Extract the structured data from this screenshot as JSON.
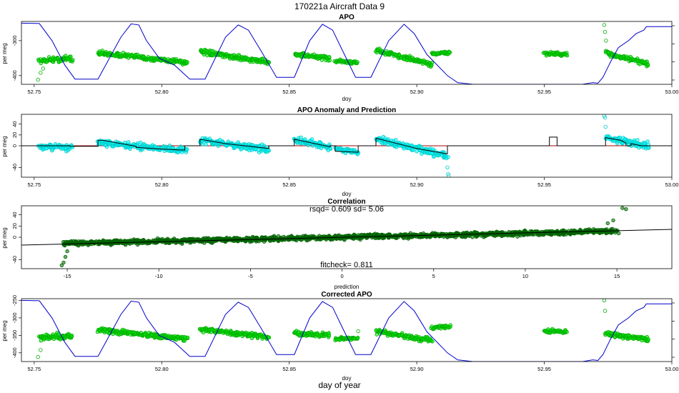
{
  "figure": {
    "title": "170221a   Aircraft Data 9",
    "bottom_label": "day of year"
  },
  "colors": {
    "aircraft_line": "#0000cc",
    "green_points": "#00ee00",
    "green_points_edge": "#00aa00",
    "cyan_points": "#00ffff",
    "cyan_points_edge": "#00c8c8",
    "dark_green_points": "#006400",
    "prediction_line": "#000000",
    "anomaly_baseline": "#aa0000"
  },
  "chart_data": [
    {
      "id": "apo",
      "type": "scatter",
      "title": "APO",
      "xlabel": "doy",
      "ylabel": "per meg",
      "xlim": [
        52.745,
        53.0
      ],
      "ylim": [
        -425,
        -245
      ],
      "x_ticks": [
        "52.75",
        "52.80",
        "52.85",
        "52.90",
        "52.95",
        "53.00"
      ],
      "y_ticks": [
        "-400",
        "-300"
      ],
      "secondary_axis": true,
      "series": [
        {
          "kind": "points",
          "clusters": [
            {
              "x": [
                52.752,
                52.765
              ],
              "y_start": -357,
              "y_end": -350,
              "spread": 12
            },
            {
              "x": [
                52.775,
                52.81
              ],
              "y_start": -335,
              "y_end": -362,
              "spread": 10
            },
            {
              "x": [
                52.815,
                52.842
              ],
              "y_start": -332,
              "y_end": -362,
              "spread": 10
            },
            {
              "x": [
                52.852,
                52.866
              ],
              "y_start": -338,
              "y_end": -352,
              "spread": 10
            },
            {
              "x": [
                52.868,
                52.877
              ],
              "y_start": -358,
              "y_end": -363,
              "spread": 6
            },
            {
              "x": [
                52.884,
                52.906
              ],
              "y_start": -328,
              "y_end": -368,
              "spread": 10
            },
            {
              "x": [
                52.906,
                52.913
              ],
              "y_start": -338,
              "y_end": -334,
              "spread": 6
            },
            {
              "x": [
                52.95,
                52.959
              ],
              "y_start": -336,
              "y_end": -340,
              "spread": 8
            },
            {
              "x": [
                52.974,
                52.991
              ],
              "y_start": -335,
              "y_end": -368,
              "spread": 10
            }
          ],
          "outliers": [
            [
              52.7525,
              -392
            ],
            [
              52.7515,
              -412
            ],
            [
              52.7535,
              -380
            ],
            [
              52.9735,
              -255
            ],
            [
              52.9738,
              -275
            ],
            [
              52.9742,
              -300
            ]
          ]
        },
        {
          "kind": "line",
          "points": [
            [
              52.745,
              -250
            ],
            [
              52.752,
              -251
            ],
            [
              52.757,
              -300
            ],
            [
              52.762,
              -370
            ],
            [
              52.766,
              -410
            ],
            [
              52.775,
              -410
            ],
            [
              52.784,
              -290
            ],
            [
              52.788,
              -252
            ],
            [
              52.791,
              -255
            ],
            [
              52.794,
              -300
            ],
            [
              52.799,
              -350
            ],
            [
              52.805,
              -370
            ],
            [
              52.811,
              -410
            ],
            [
              52.817,
              -410
            ],
            [
              52.825,
              -290
            ],
            [
              52.83,
              -255
            ],
            [
              52.834,
              -270
            ],
            [
              52.839,
              -330
            ],
            [
              52.845,
              -405
            ],
            [
              52.852,
              -405
            ],
            [
              52.858,
              -300
            ],
            [
              52.863,
              -253
            ],
            [
              52.867,
              -270
            ],
            [
              52.871,
              -330
            ],
            [
              52.876,
              -405
            ],
            [
              52.882,
              -405
            ],
            [
              52.889,
              -300
            ],
            [
              52.895,
              -253
            ],
            [
              52.899,
              -280
            ],
            [
              52.904,
              -340
            ],
            [
              52.912,
              -400
            ],
            [
              52.916,
              -420
            ],
            [
              52.922,
              -425
            ],
            [
              52.965,
              -425
            ],
            [
              52.969,
              -420
            ],
            [
              52.971,
              -422
            ],
            [
              52.973,
              -405
            ],
            [
              52.976,
              -360
            ],
            [
              52.979,
              -320
            ],
            [
              52.983,
              -300
            ],
            [
              52.986,
              -280
            ],
            [
              52.989,
              -270
            ],
            [
              52.99,
              -260
            ],
            [
              53.0,
              -260
            ]
          ]
        }
      ]
    },
    {
      "id": "apo_anomaly",
      "type": "scatter",
      "title": "APO Anomaly and Prediction",
      "xlabel": "doy",
      "ylabel": "per meg",
      "xlim": [
        52.745,
        53.0
      ],
      "ylim": [
        -58,
        58
      ],
      "x_ticks": [
        "52.75",
        "52.80",
        "52.85",
        "52.90",
        "52.95",
        "53.00"
      ],
      "y_ticks": [
        "-40",
        "0",
        "20",
        "40"
      ],
      "series": [
        {
          "kind": "points",
          "clusters": [
            {
              "x": [
                52.752,
                52.765
              ],
              "y_start": -2,
              "y_end": -3,
              "spread": 9
            },
            {
              "x": [
                52.775,
                52.79
              ],
              "y_start": 6,
              "y_end": -2,
              "spread": 9
            },
            {
              "x": [
                52.79,
                52.81
              ],
              "y_start": 0,
              "y_end": -9,
              "spread": 9
            },
            {
              "x": [
                52.815,
                52.842
              ],
              "y_start": 10,
              "y_end": -7,
              "spread": 9
            },
            {
              "x": [
                52.852,
                52.866
              ],
              "y_start": 10,
              "y_end": -2,
              "spread": 9
            },
            {
              "x": [
                52.868,
                52.877
              ],
              "y_start": -5,
              "y_end": -12,
              "spread": 6
            },
            {
              "x": [
                52.884,
                52.912
              ],
              "y_start": 12,
              "y_end": -18,
              "spread": 9
            },
            {
              "x": [
                52.974,
                52.991
              ],
              "y_start": 15,
              "y_end": 0,
              "spread": 9
            }
          ],
          "outliers": [
            [
              52.912,
              -40
            ],
            [
              52.9123,
              -52
            ],
            [
              52.9125,
              -55
            ],
            [
              52.9735,
              55
            ],
            [
              52.9738,
              52
            ],
            [
              52.974,
              35
            ]
          ]
        },
        {
          "kind": "step",
          "points": [
            [
              52.745,
              0
            ],
            [
              52.764,
              0
            ],
            [
              52.764,
              -1
            ],
            [
              52.775,
              -1
            ],
            [
              52.775,
              10
            ],
            [
              52.777,
              10
            ],
            [
              52.79,
              -1
            ],
            [
              52.79,
              -3
            ],
            [
              52.8,
              -6
            ],
            [
              52.809,
              -8
            ],
            [
              52.809,
              0
            ],
            [
              52.815,
              0
            ],
            [
              52.815,
              12
            ],
            [
              52.825,
              4
            ],
            [
              52.842,
              -5
            ],
            [
              52.842,
              0
            ],
            [
              52.852,
              0
            ],
            [
              52.852,
              12
            ],
            [
              52.866,
              -2
            ],
            [
              52.866,
              0
            ],
            [
              52.868,
              0
            ],
            [
              52.868,
              -10
            ],
            [
              52.877,
              -12
            ],
            [
              52.877,
              0
            ],
            [
              52.884,
              0
            ],
            [
              52.884,
              14
            ],
            [
              52.9,
              -5
            ],
            [
              52.912,
              -15
            ],
            [
              52.912,
              0
            ],
            [
              52.952,
              0
            ],
            [
              52.952,
              16
            ],
            [
              52.955,
              16
            ],
            [
              52.955,
              0
            ],
            [
              52.974,
              0
            ],
            [
              52.974,
              15
            ],
            [
              52.98,
              10
            ],
            [
              52.982,
              5
            ],
            [
              52.982,
              0
            ],
            [
              52.984,
              0
            ],
            [
              52.984,
              4
            ],
            [
              52.988,
              0
            ],
            [
              52.991,
              0
            ],
            [
              52.991,
              0
            ],
            [
              53.0,
              0
            ]
          ]
        }
      ]
    },
    {
      "id": "correlation",
      "type": "scatter",
      "title": "Correlation",
      "xlabel": "prediction",
      "ylabel": "per meg",
      "xlim": [
        -17.5,
        18
      ],
      "ylim": [
        -56,
        56
      ],
      "x_ticks": [
        "-15",
        "-10",
        "-5",
        "0",
        "5",
        "10",
        "15"
      ],
      "y_ticks": [
        "-40",
        "0",
        "20",
        "40"
      ],
      "annotation_top": "rsqd= 0.609 sd= 5.06",
      "annotation_bottom": "fitcheck= 0.811",
      "fit_line": [
        [
          -17.5,
          -14
        ],
        [
          18,
          14
        ]
      ],
      "cloud": {
        "x": [
          -15.2,
          15
        ],
        "slope": 0.72,
        "intercept": 0,
        "spread": 6
      },
      "outliers": [
        [
          -15.3,
          -50
        ],
        [
          -15.1,
          -35
        ],
        [
          -15.0,
          -25
        ],
        [
          -15.2,
          -45
        ],
        [
          15.3,
          52
        ],
        [
          15.5,
          50
        ],
        [
          14.8,
          30
        ],
        [
          14.5,
          25
        ]
      ]
    },
    {
      "id": "corrected_apo",
      "type": "scatter",
      "title": "Corrected APO",
      "xlabel": "doy",
      "ylabel": "per meg",
      "xlim": [
        52.745,
        53.0
      ],
      "ylim": [
        -425,
        -245
      ],
      "x_ticks": [
        "52.75",
        "52.80",
        "52.85",
        "52.90",
        "52.95",
        "53.00"
      ],
      "y_ticks": [
        "-400",
        "-350",
        "-300",
        "-250"
      ],
      "secondary_axis": true,
      "series": [
        {
          "kind": "points",
          "clusters": [
            {
              "x": [
                52.752,
                52.765
              ],
              "y_start": -357,
              "y_end": -350,
              "spread": 12
            },
            {
              "x": [
                52.775,
                52.81
              ],
              "y_start": -335,
              "y_end": -360,
              "spread": 10
            },
            {
              "x": [
                52.815,
                52.842
              ],
              "y_start": -332,
              "y_end": -355,
              "spread": 10
            },
            {
              "x": [
                52.852,
                52.866
              ],
              "y_start": -345,
              "y_end": -350,
              "spread": 10
            },
            {
              "x": [
                52.868,
                52.877
              ],
              "y_start": -360,
              "y_end": -358,
              "spread": 6
            },
            {
              "x": [
                52.884,
                52.906
              ],
              "y_start": -340,
              "y_end": -365,
              "spread": 10
            },
            {
              "x": [
                52.906,
                52.913
              ],
              "y_start": -328,
              "y_end": -325,
              "spread": 6
            },
            {
              "x": [
                52.95,
                52.959
              ],
              "y_start": -338,
              "y_end": -340,
              "spread": 8
            },
            {
              "x": [
                52.974,
                52.991
              ],
              "y_start": -345,
              "y_end": -362,
              "spread": 10
            }
          ],
          "outliers": [
            [
              52.7525,
              -392
            ],
            [
              52.7515,
              -412
            ],
            [
              52.9735,
              -250
            ],
            [
              52.9738,
              -280
            ],
            [
              52.877,
              -338
            ]
          ]
        },
        {
          "kind": "line",
          "points": [
            [
              52.745,
              -250
            ],
            [
              52.752,
              -251
            ],
            [
              52.757,
              -300
            ],
            [
              52.762,
              -370
            ],
            [
              52.766,
              -410
            ],
            [
              52.775,
              -410
            ],
            [
              52.784,
              -290
            ],
            [
              52.788,
              -252
            ],
            [
              52.791,
              -255
            ],
            [
              52.794,
              -300
            ],
            [
              52.799,
              -350
            ],
            [
              52.805,
              -370
            ],
            [
              52.811,
              -410
            ],
            [
              52.817,
              -410
            ],
            [
              52.825,
              -290
            ],
            [
              52.83,
              -255
            ],
            [
              52.834,
              -270
            ],
            [
              52.839,
              -330
            ],
            [
              52.845,
              -405
            ],
            [
              52.852,
              -405
            ],
            [
              52.858,
              -300
            ],
            [
              52.863,
              -253
            ],
            [
              52.867,
              -270
            ],
            [
              52.871,
              -330
            ],
            [
              52.876,
              -405
            ],
            [
              52.882,
              -405
            ],
            [
              52.889,
              -300
            ],
            [
              52.895,
              -253
            ],
            [
              52.899,
              -280
            ],
            [
              52.904,
              -340
            ],
            [
              52.912,
              -400
            ],
            [
              52.916,
              -420
            ],
            [
              52.922,
              -425
            ],
            [
              52.965,
              -425
            ],
            [
              52.969,
              -420
            ],
            [
              52.971,
              -422
            ],
            [
              52.973,
              -405
            ],
            [
              52.976,
              -360
            ],
            [
              52.979,
              -320
            ],
            [
              52.983,
              -300
            ],
            [
              52.986,
              -280
            ],
            [
              52.989,
              -270
            ],
            [
              52.99,
              -260
            ],
            [
              53.0,
              -260
            ]
          ]
        }
      ]
    }
  ]
}
